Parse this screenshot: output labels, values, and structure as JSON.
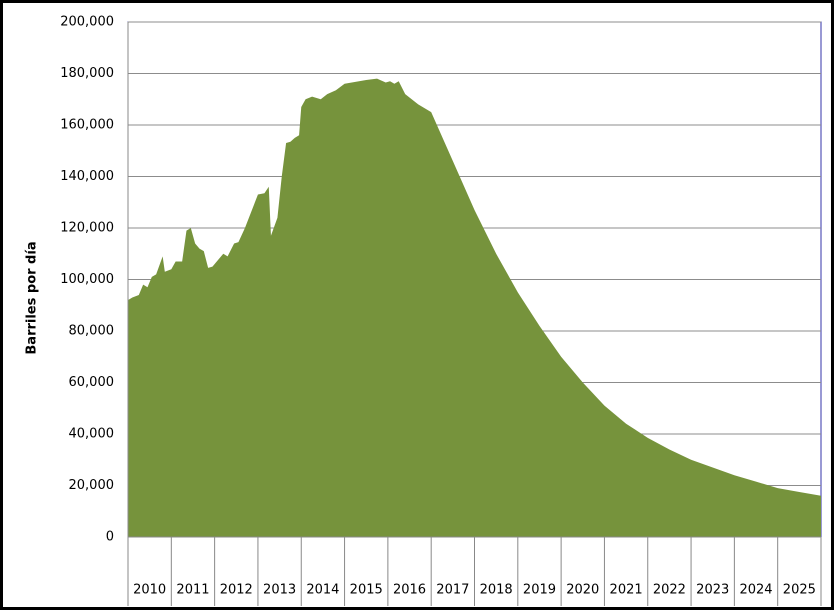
{
  "chart_data": {
    "type": "area",
    "y_label": "Barriles por día",
    "x": [
      2010.0,
      2010.1,
      2010.25,
      2010.35,
      2010.45,
      2010.55,
      2010.65,
      2010.8,
      2010.85,
      2011.0,
      2011.1,
      2011.25,
      2011.35,
      2011.45,
      2011.55,
      2011.65,
      2011.75,
      2011.85,
      2011.95,
      2012.1,
      2012.2,
      2012.3,
      2012.45,
      2012.55,
      2012.7,
      2013.0,
      2013.15,
      2013.25,
      2013.3,
      2013.45,
      2013.55,
      2013.65,
      2013.75,
      2013.85,
      2013.95,
      2014.0,
      2014.1,
      2014.25,
      2014.45,
      2014.6,
      2014.8,
      2015.0,
      2015.5,
      2015.75,
      2015.95,
      2016.05,
      2016.15,
      2016.25,
      2016.4,
      2016.7,
      2017.0,
      2017.5,
      2018.0,
      2018.5,
      2019.0,
      2019.5,
      2020.0,
      2020.5,
      2021.0,
      2021.5,
      2022.0,
      2022.5,
      2023.0,
      2023.5,
      2024.0,
      2024.5,
      2025.0,
      2025.5,
      2026.0
    ],
    "values": [
      92000,
      93000,
      94000,
      98000,
      97000,
      101000,
      102000,
      109000,
      103000,
      104000,
      107000,
      107000,
      119000,
      120000,
      114000,
      112000,
      111000,
      104500,
      105000,
      108000,
      110000,
      109000,
      114000,
      114500,
      120000,
      133000,
      133500,
      136000,
      117000,
      124000,
      140000,
      153000,
      153500,
      155000,
      156000,
      167000,
      170000,
      171000,
      170000,
      172000,
      173500,
      176000,
      177500,
      178000,
      176500,
      177000,
      176000,
      177000,
      172000,
      168000,
      165000,
      146000,
      127000,
      110000,
      95000,
      82000,
      70000,
      60000,
      51000,
      44000,
      38500,
      34000,
      30000,
      27000,
      24000,
      21500,
      19000,
      17500,
      16000
    ],
    "color": "#76933c",
    "xlim": [
      2010,
      2026
    ],
    "xticks": [
      2010,
      2011,
      2012,
      2013,
      2014,
      2015,
      2016,
      2017,
      2018,
      2019,
      2020,
      2021,
      2022,
      2023,
      2024,
      2025
    ],
    "ylim": [
      0,
      200000
    ],
    "yticks": [
      0,
      {
        "value": 20000,
        "label": "20,000"
      },
      {
        "value": 40000,
        "label": "40,000"
      },
      {
        "value": 60000,
        "label": "60,000"
      },
      {
        "value": 80000,
        "label": "80,000"
      },
      {
        "value": 100000,
        "label": "100,000"
      },
      {
        "value": 120000,
        "label": "120,000"
      },
      {
        "value": 140000,
        "label": "140,000"
      },
      {
        "value": 160000,
        "label": "160,000"
      },
      {
        "value": 180000,
        "label": "180,000"
      },
      {
        "value": 200000,
        "label": "200,000"
      }
    ],
    "grid": true
  }
}
